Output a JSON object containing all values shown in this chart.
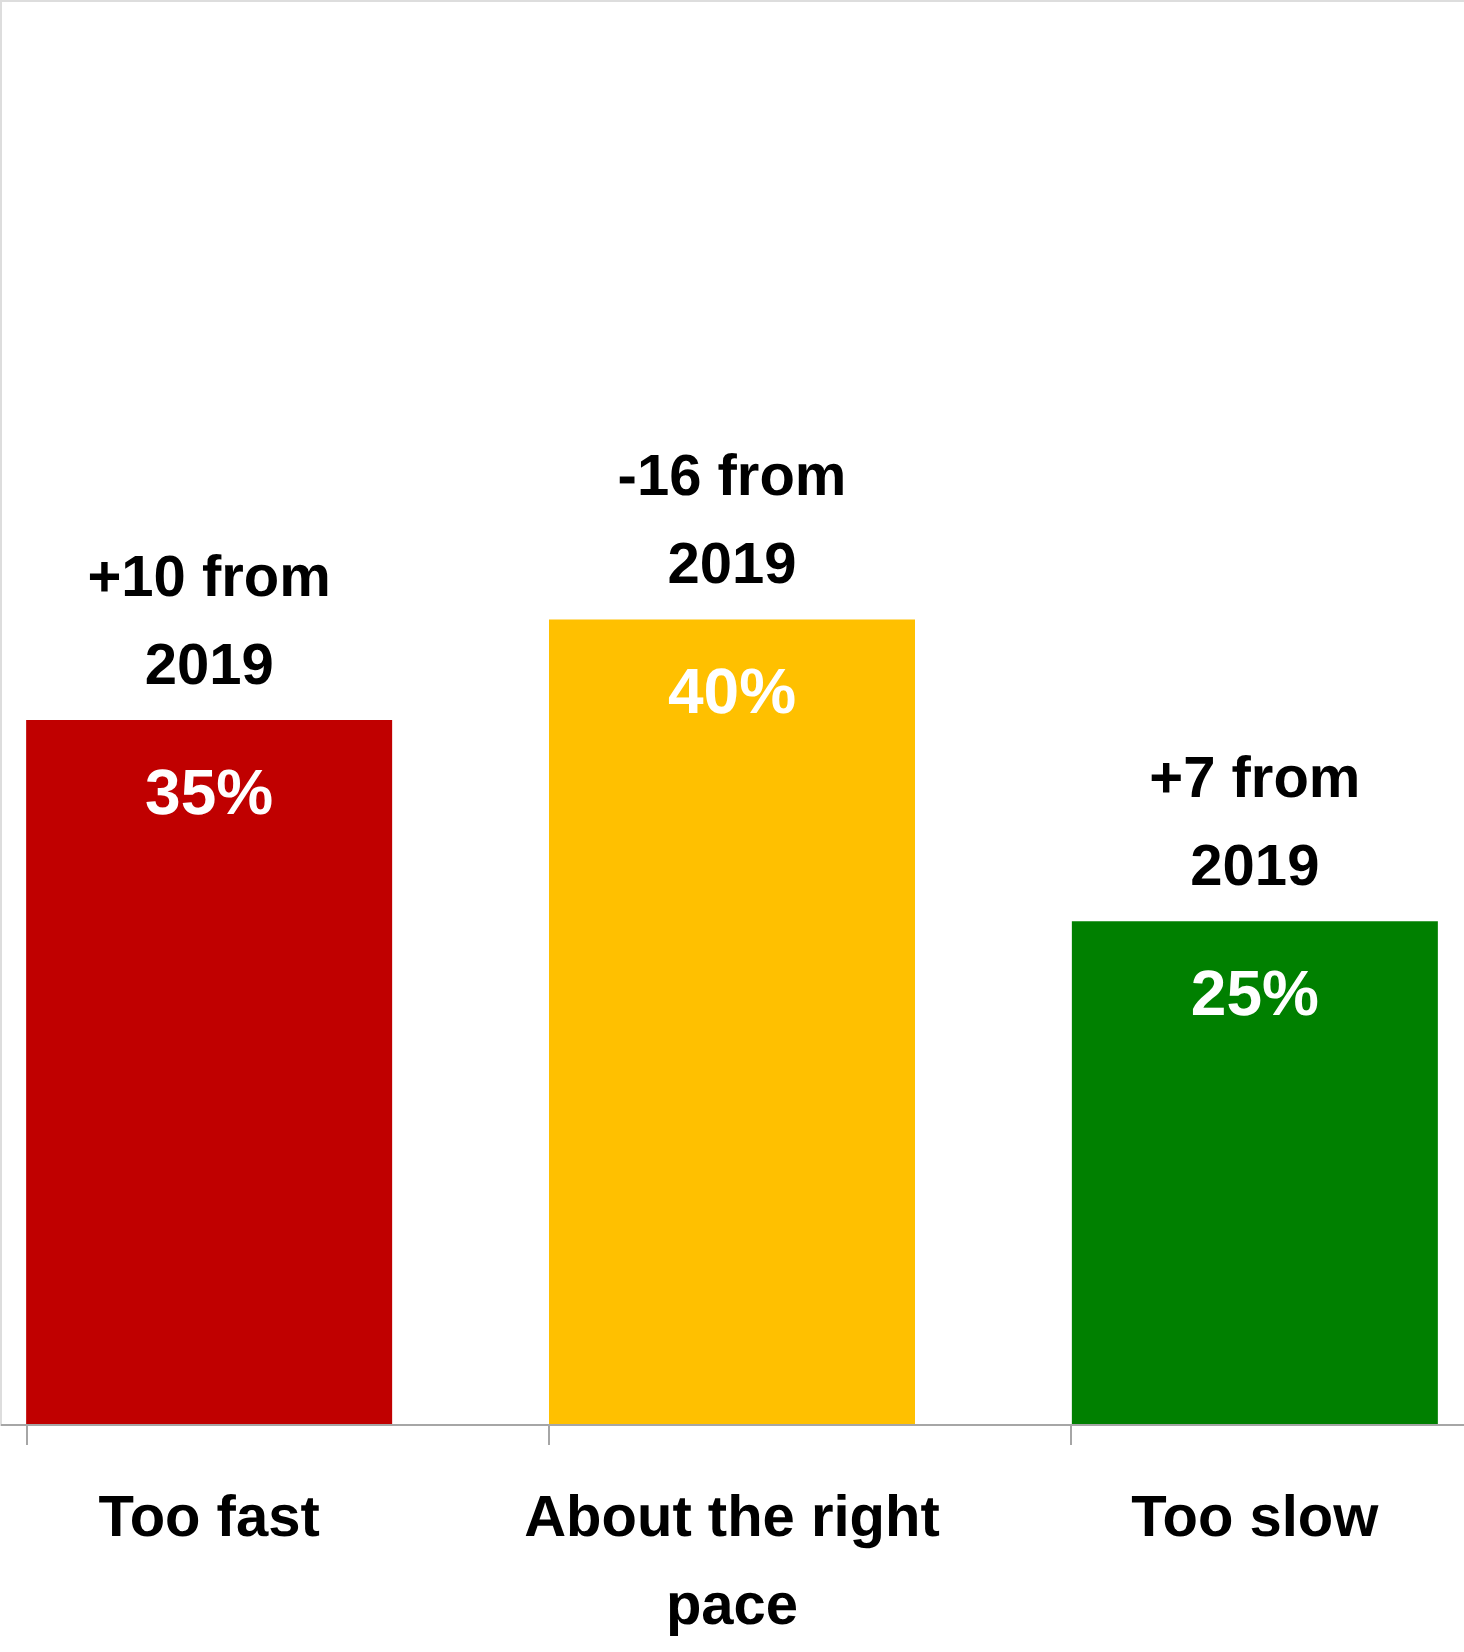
{
  "chart_data": {
    "type": "bar",
    "categories": [
      "Too fast",
      "About the right pace",
      "Too slow"
    ],
    "values": [
      35,
      40,
      25
    ],
    "colors": [
      "#c00000",
      "#ffc000",
      "#008000"
    ],
    "value_labels": [
      "35%",
      "40%",
      "25%"
    ],
    "annotations": [
      {
        "text": "+10 from 2019",
        "x": "Too fast",
        "y": 35
      },
      {
        "text": "-16 from 2019",
        "x": "About the right pace",
        "y": 40
      },
      {
        "text": "+7 from 2019",
        "x": "Too slow",
        "y": 25
      }
    ]
  }
}
